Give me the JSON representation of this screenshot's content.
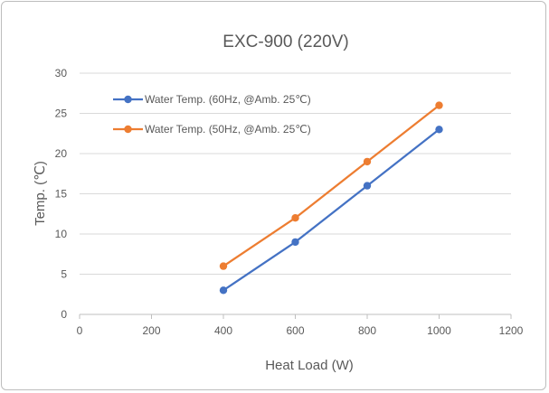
{
  "chart_data": {
    "type": "line",
    "title": "EXC-900  (220V)",
    "xlabel": "Heat Load (W)",
    "ylabel": "Temp. (℃)",
    "xlim": [
      0,
      1200
    ],
    "ylim": [
      0,
      30
    ],
    "x_ticks": [
      "0",
      "200",
      "400",
      "600",
      "800",
      "1000",
      "1200"
    ],
    "y_ticks": [
      "0",
      "5",
      "10",
      "15",
      "20",
      "25",
      "30"
    ],
    "grid": "horizontal",
    "legend_position": "top-left",
    "series": [
      {
        "name": "Water Temp. (60Hz, @Amb. 25℃)",
        "color": "#4472C4",
        "x": [
          400,
          600,
          800,
          1000
        ],
        "y": [
          3,
          9,
          16,
          23
        ]
      },
      {
        "name": "Water Temp. (50Hz, @Amb. 25℃)",
        "color": "#ED7D31",
        "x": [
          400,
          600,
          800,
          1000
        ],
        "y": [
          6,
          12,
          19,
          26
        ]
      }
    ]
  }
}
